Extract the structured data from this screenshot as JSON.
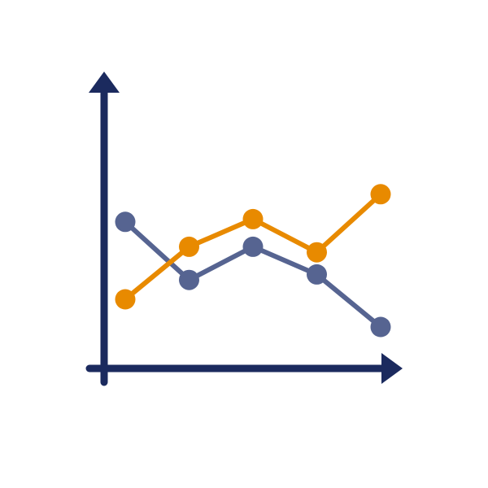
{
  "chart_data": {
    "type": "line",
    "title": "",
    "xlabel": "",
    "ylabel": "",
    "x": [
      1,
      2,
      3,
      4,
      5
    ],
    "xlim": [
      0.7,
      5.7
    ],
    "ylim": [
      0,
      100
    ],
    "grid": false,
    "legend": "none",
    "series": [
      {
        "color": "#e88a00",
        "values": [
          25,
          44,
          54,
          42,
          63
        ]
      },
      {
        "color": "#566491",
        "values": [
          53,
          32,
          44,
          34,
          15
        ]
      }
    ]
  },
  "colors": {
    "axis": "#1b2a5e",
    "background": "#ffffff"
  }
}
